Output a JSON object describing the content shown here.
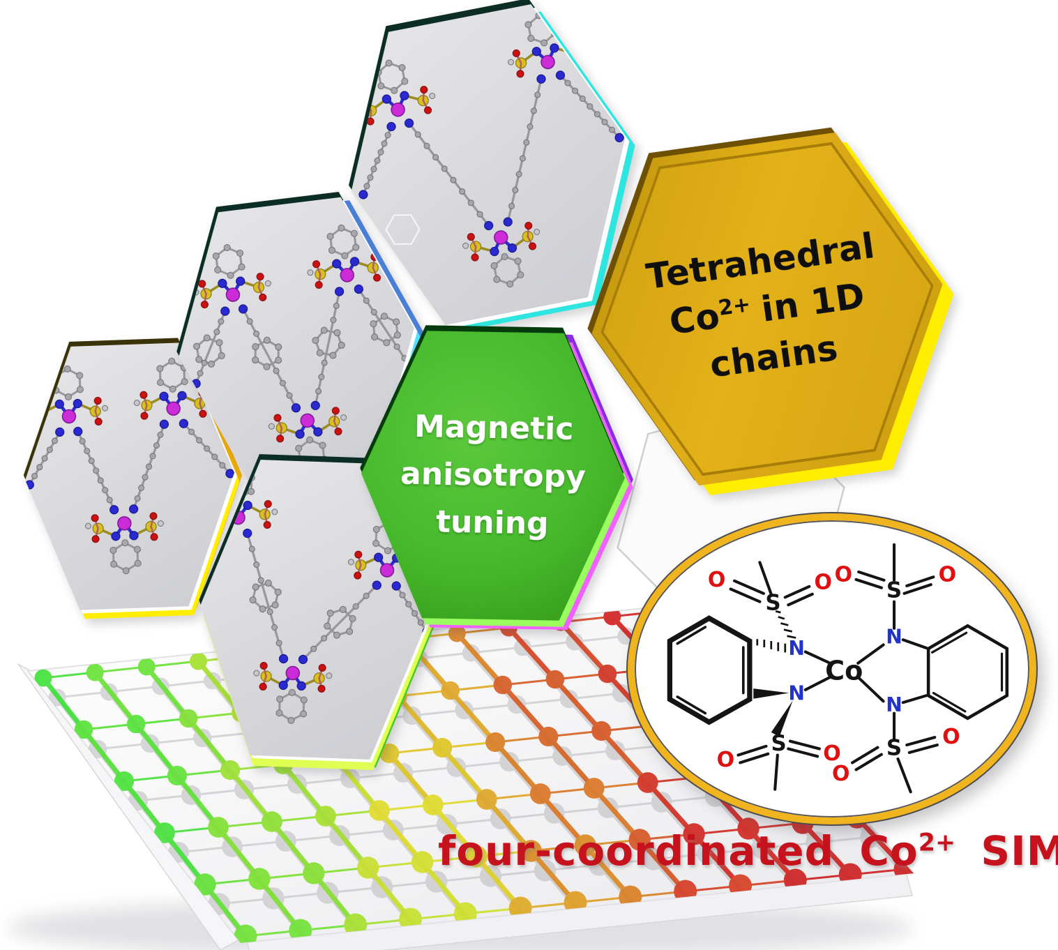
{
  "figure_title": "graphical-abstract",
  "gold_hexagon": {
    "line1": "Tetrahedral",
    "co": "Co",
    "charge": "2+",
    "line2_rest": "in 1D",
    "line3": "chains",
    "fill_color": "#DDA813",
    "bevel_color": "#FFED00",
    "text_color": "#0F0F10"
  },
  "green_hexagon": {
    "line1": "Magnetic",
    "line2": "anisotropy",
    "line3": "tuning",
    "fill_color": "#46B82C",
    "edge_purple": "#8A2BE2",
    "edge_magenta": "#F061FF",
    "text_color": "#FFFFFF"
  },
  "caption": {
    "prefix": "four-coordinated",
    "co": "Co",
    "charge": "2+",
    "suffix": "SIM",
    "color": "#C5121C"
  },
  "structure_oval": {
    "center_atom": "Co",
    "nitrogen": "N",
    "sulfur": "S",
    "oxygen": "O",
    "ring_border_color": "#F0B41E",
    "nitrogen_color": "#2233CC",
    "oxygen_color": "#E01010",
    "bond_color": "#141414"
  },
  "molecule_tiles": {
    "count": 4,
    "description": "ball-and-stick Co chain fragments",
    "cobalt_color": "#CC2BD8",
    "nitrogen_color": "#2A2AD0",
    "sulfur_color": "#D8C020",
    "oxygen_color": "#CC1111",
    "carbon_color": "#A8A8AC"
  },
  "substrate": {
    "heatmap_colors": [
      "#3FC43F",
      "#C8DC50",
      "#E8C84A",
      "#E89040",
      "#DD2211"
    ]
  }
}
